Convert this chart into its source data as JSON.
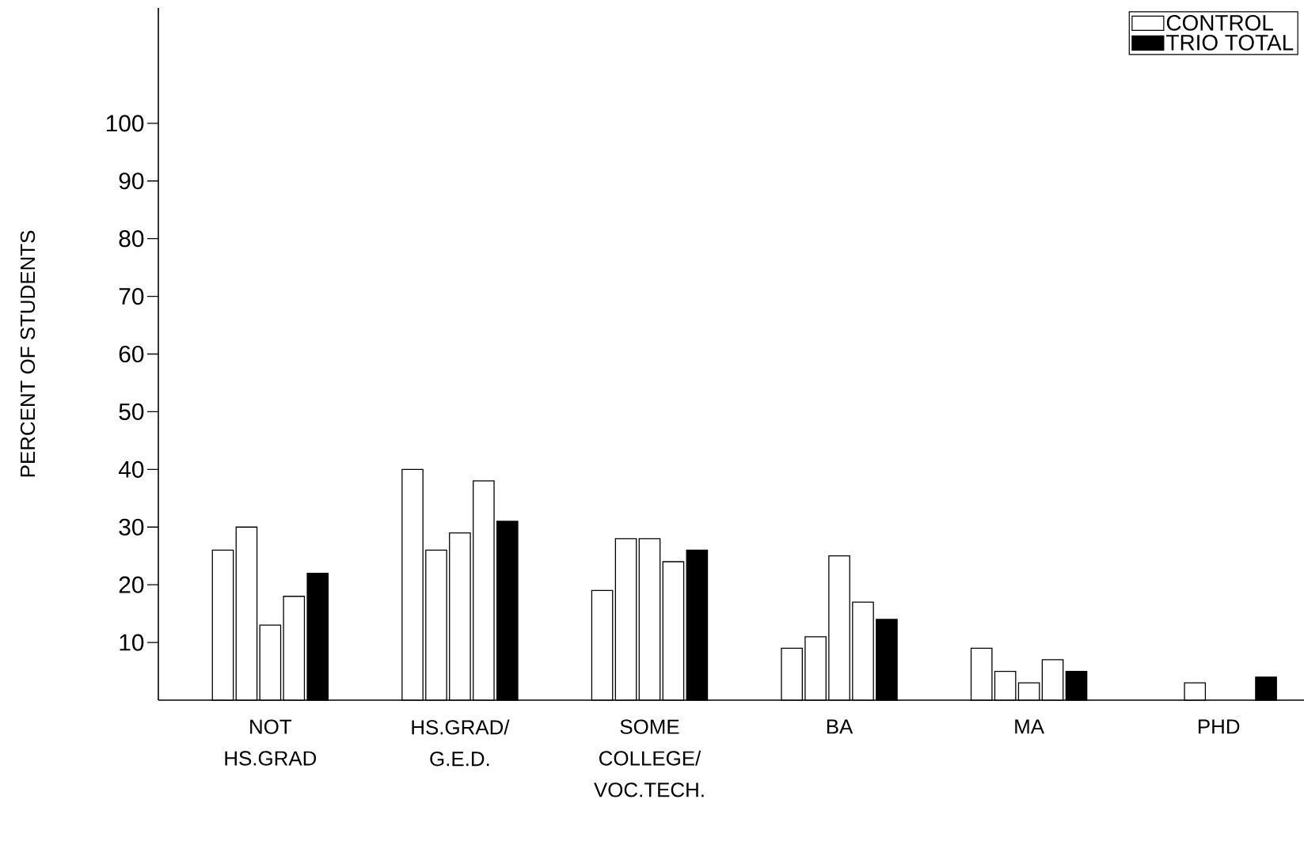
{
  "chart_data": {
    "type": "bar",
    "ylabel": "PERCENT OF STUDENTS",
    "categories": [
      "NOT HS.GRAD",
      "HS.GRAD/ G.E.D.",
      "SOME COLLEGE/ VOC.TECH.",
      "BA",
      "MA",
      "PHD"
    ],
    "series": [
      {
        "color": "#ffffff",
        "values": [
          26,
          40,
          19,
          9,
          9,
          null
        ]
      },
      {
        "color": "#ffffff",
        "values": [
          30,
          26,
          28,
          11,
          5,
          3
        ]
      },
      {
        "color": "#ffffff",
        "values": [
          13,
          29,
          28,
          25,
          3,
          null
        ]
      },
      {
        "name": "CONTROL",
        "color": "#ffffff",
        "values": [
          18,
          38,
          24,
          17,
          7,
          null
        ]
      },
      {
        "name": "TRIO TOTAL",
        "color": "#000000",
        "values": [
          22,
          31,
          26,
          14,
          5,
          4
        ]
      }
    ],
    "ylim": [
      0,
      120
    ],
    "yticks": [
      10,
      20,
      30,
      40,
      50,
      60,
      70,
      80,
      90,
      100
    ],
    "grid": false,
    "legend": "top right"
  }
}
